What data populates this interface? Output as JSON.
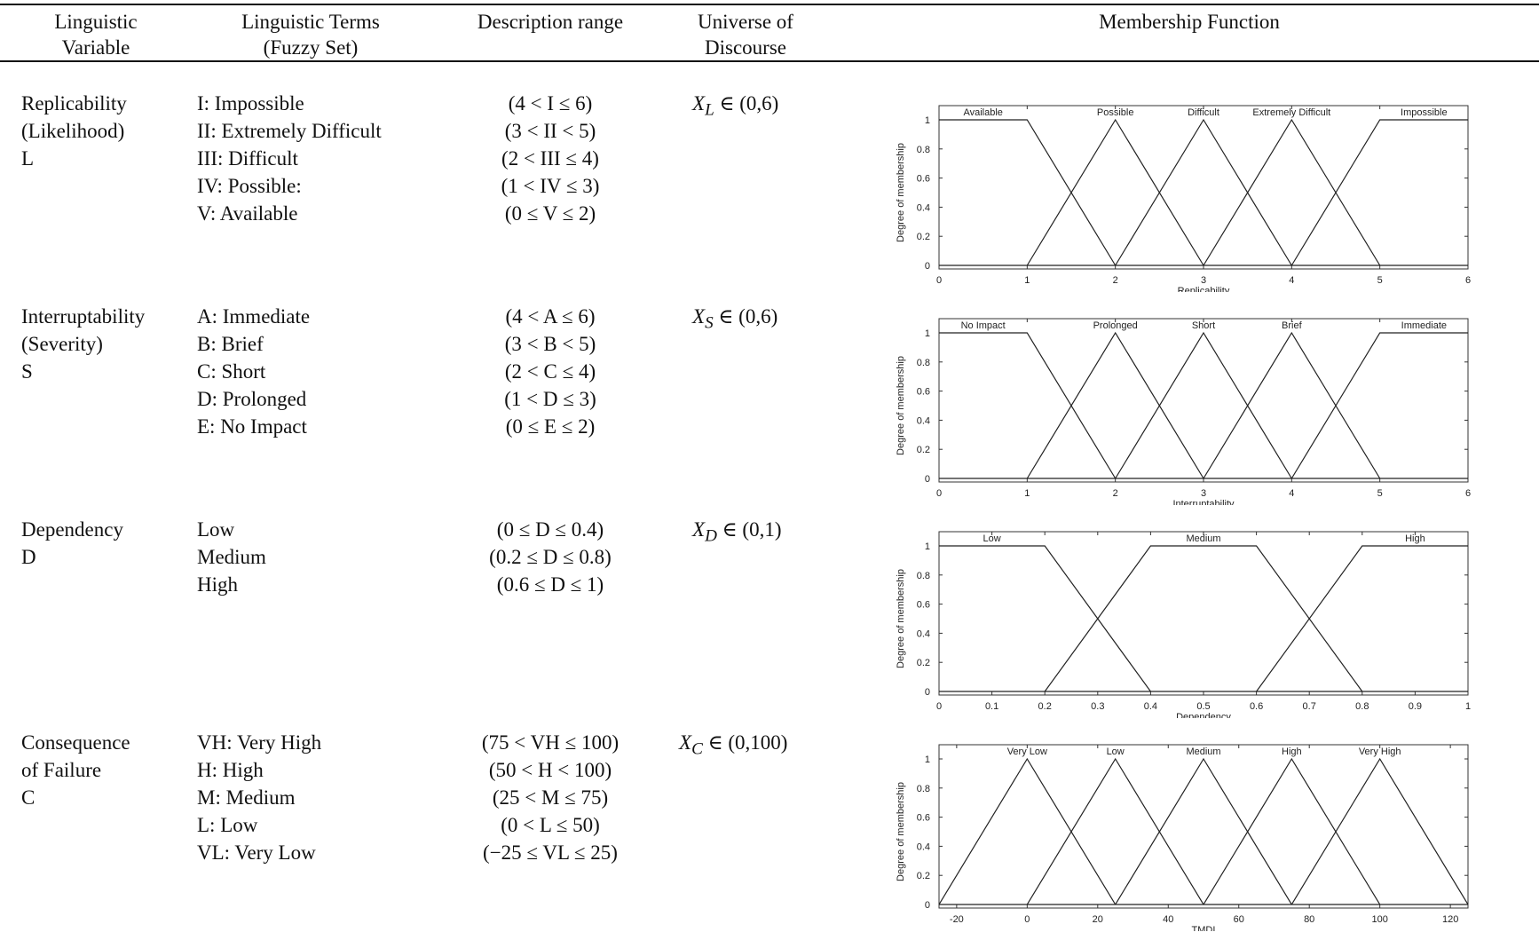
{
  "header": {
    "col1": [
      "Linguistic",
      "Variable"
    ],
    "col2": [
      "Linguistic Terms",
      "(Fuzzy Set)"
    ],
    "col3": [
      "Description range"
    ],
    "col4": [
      "Universe of",
      "Discourse"
    ],
    "col5": [
      "Membership Function"
    ]
  },
  "rows": [
    {
      "variable": [
        "Replicability",
        "(Likelihood)",
        "L"
      ],
      "terms": [
        "I: Impossible",
        "II: Extremely Difficult",
        "III: Difficult",
        "IV: Possible:",
        "V: Available"
      ],
      "ranges": [
        "(4 < I ≤ 6)",
        "(3 < II < 5)",
        "(2 < III ≤ 4)",
        "(1 < IV ≤ 3)",
        "(0 ≤ V ≤ 2)"
      ],
      "universe": "X_L ∈ (0,6)",
      "universe_sub": "L",
      "universe_rest": " ∈ (0,6)"
    },
    {
      "variable": [
        "Interruptability",
        "(Severity)",
        "S"
      ],
      "terms": [
        "A: Immediate",
        "B: Brief",
        "C: Short",
        "D: Prolonged",
        "E: No Impact"
      ],
      "ranges": [
        "(4 < A ≤ 6)",
        "(3 < B < 5)",
        "(2 < C ≤ 4)",
        "(1 < D ≤ 3)",
        "(0 ≤ E ≤ 2)"
      ],
      "universe": "X_S ∈ (0,6)",
      "universe_sub": "S",
      "universe_rest": " ∈ (0,6)"
    },
    {
      "variable": [
        "Dependency",
        "D"
      ],
      "terms": [
        "Low",
        "Medium",
        "High"
      ],
      "ranges": [
        "(0 ≤ D ≤ 0.4)",
        "(0.2 ≤ D ≤ 0.8)",
        "(0.6 ≤ D ≤ 1)"
      ],
      "universe": "X_D ∈ (0,1)",
      "universe_sub": "D",
      "universe_rest": " ∈ (0,1)"
    },
    {
      "variable": [
        "Consequence",
        "of Failure",
        "C"
      ],
      "terms": [
        "VH: Very High",
        "H: High",
        "M: Medium",
        "L: Low",
        "VL: Very Low"
      ],
      "ranges": [
        "(75 < VH ≤ 100)",
        "(50 < H < 100)",
        "(25 < M ≤ 75)",
        "(0 < L ≤ 50)",
        "(−25 ≤ VL ≤ 25)"
      ],
      "universe": "X_C ∈ (0,100)",
      "universe_sub": "C",
      "universe_rest": " ∈ (0,100)"
    }
  ],
  "chart_data": [
    {
      "type": "line",
      "xlabel": "Replicability",
      "ylabel": "Degree of membership",
      "xlim": [
        0,
        6
      ],
      "ylim": [
        0,
        1
      ],
      "xticks": [
        "0",
        "1",
        "2",
        "3",
        "4",
        "5",
        "6"
      ],
      "yticks": [
        "0",
        "0.2",
        "0.4",
        "0.6",
        "0.8",
        "1"
      ],
      "series": [
        {
          "name": "Available",
          "x": [
            0,
            1,
            2
          ],
          "y": [
            1,
            1,
            0
          ]
        },
        {
          "name": "Possible",
          "x": [
            1,
            2,
            3
          ],
          "y": [
            0,
            1,
            0
          ]
        },
        {
          "name": "Difficult",
          "x": [
            2,
            3,
            4
          ],
          "y": [
            0,
            1,
            0
          ]
        },
        {
          "name": "Extremely Difficult",
          "x": [
            3,
            4,
            5
          ],
          "y": [
            0,
            1,
            0
          ]
        },
        {
          "name": "Impossible",
          "x": [
            4,
            5,
            6
          ],
          "y": [
            0,
            1,
            1
          ]
        }
      ]
    },
    {
      "type": "line",
      "xlabel": "Interruptability",
      "ylabel": "Degree of membership",
      "xlim": [
        0,
        6
      ],
      "ylim": [
        0,
        1
      ],
      "xticks": [
        "0",
        "1",
        "2",
        "3",
        "4",
        "5",
        "6"
      ],
      "yticks": [
        "0",
        "0.2",
        "0.4",
        "0.6",
        "0.8",
        "1"
      ],
      "series": [
        {
          "name": "No Impact",
          "x": [
            0,
            1,
            2
          ],
          "y": [
            1,
            1,
            0
          ]
        },
        {
          "name": "Prolonged",
          "x": [
            1,
            2,
            3
          ],
          "y": [
            0,
            1,
            0
          ]
        },
        {
          "name": "Short",
          "x": [
            2,
            3,
            4
          ],
          "y": [
            0,
            1,
            0
          ]
        },
        {
          "name": "Brief",
          "x": [
            3,
            4,
            5
          ],
          "y": [
            0,
            1,
            0
          ]
        },
        {
          "name": "Immediate",
          "x": [
            4,
            5,
            6
          ],
          "y": [
            0,
            1,
            1
          ]
        }
      ]
    },
    {
      "type": "line",
      "xlabel": "Dependency",
      "ylabel": "Degree of membership",
      "xlim": [
        0,
        1
      ],
      "ylim": [
        0,
        1
      ],
      "xticks": [
        "0",
        "0.1",
        "0.2",
        "0.3",
        "0.4",
        "0.5",
        "0.6",
        "0.7",
        "0.8",
        "0.9",
        "1"
      ],
      "yticks": [
        "0",
        "0.2",
        "0.4",
        "0.6",
        "0.8",
        "1"
      ],
      "series": [
        {
          "name": "Low",
          "x": [
            0,
            0.2,
            0.4
          ],
          "y": [
            1,
            1,
            0
          ]
        },
        {
          "name": "Medium",
          "x": [
            0.2,
            0.4,
            0.6,
            0.8
          ],
          "y": [
            0,
            1,
            1,
            0
          ]
        },
        {
          "name": "High",
          "x": [
            0.6,
            0.8,
            1
          ],
          "y": [
            0,
            1,
            1
          ]
        }
      ]
    },
    {
      "type": "line",
      "xlabel": "TMDI",
      "ylabel": "Degree of membership",
      "xlim": [
        -25,
        125
      ],
      "ylim": [
        0,
        1
      ],
      "xticks": [
        "-20",
        "0",
        "20",
        "40",
        "60",
        "80",
        "100",
        "120"
      ],
      "yticks": [
        "0",
        "0.2",
        "0.4",
        "0.6",
        "0.8",
        "1"
      ],
      "series": [
        {
          "name": "Very Low",
          "x": [
            -25,
            0,
            25
          ],
          "y": [
            0,
            1,
            0
          ]
        },
        {
          "name": "Low",
          "x": [
            0,
            25,
            50
          ],
          "y": [
            0,
            1,
            0
          ]
        },
        {
          "name": "Medium",
          "x": [
            25,
            50,
            75
          ],
          "y": [
            0,
            1,
            0
          ]
        },
        {
          "name": "High",
          "x": [
            50,
            75,
            100
          ],
          "y": [
            0,
            1,
            0
          ]
        },
        {
          "name": "Very High",
          "x": [
            75,
            100,
            125
          ],
          "y": [
            0,
            1,
            0
          ]
        }
      ]
    }
  ]
}
